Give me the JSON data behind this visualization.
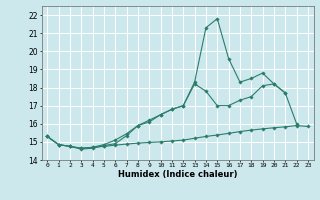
{
  "x": [
    0,
    1,
    2,
    3,
    4,
    5,
    6,
    7,
    8,
    9,
    10,
    11,
    12,
    13,
    14,
    15,
    16,
    17,
    18,
    19,
    20,
    21,
    22,
    23
  ],
  "line1": [
    15.3,
    14.85,
    14.75,
    14.6,
    14.65,
    14.8,
    14.9,
    15.35,
    15.9,
    16.2,
    16.5,
    16.8,
    17.0,
    18.2,
    17.8,
    17.0,
    17.0,
    17.3,
    17.5,
    18.1,
    18.2,
    17.7,
    16.0,
    null
  ],
  "line2": [
    15.3,
    14.85,
    14.75,
    14.65,
    14.7,
    14.85,
    15.1,
    15.45,
    15.9,
    16.1,
    16.5,
    16.8,
    17.0,
    18.3,
    21.3,
    21.8,
    19.6,
    18.3,
    18.5,
    18.8,
    18.2,
    17.7,
    null,
    null
  ],
  "line3": [
    15.3,
    14.85,
    14.75,
    14.65,
    14.7,
    14.75,
    14.82,
    14.88,
    14.93,
    14.97,
    15.0,
    15.05,
    15.1,
    15.2,
    15.3,
    15.38,
    15.47,
    15.57,
    15.65,
    15.72,
    15.78,
    15.83,
    15.9,
    15.85
  ],
  "color": "#2a7d6b",
  "bg_color": "#cce8ec",
  "grid_color": "#ffffff",
  "xlabel": "Humidex (Indice chaleur)",
  "ylim": [
    14,
    22.5
  ],
  "xlim": [
    -0.5,
    23.5
  ],
  "yticks": [
    14,
    15,
    16,
    17,
    18,
    19,
    20,
    21,
    22
  ],
  "xticks": [
    0,
    1,
    2,
    3,
    4,
    5,
    6,
    7,
    8,
    9,
    10,
    11,
    12,
    13,
    14,
    15,
    16,
    17,
    18,
    19,
    20,
    21,
    22,
    23
  ]
}
